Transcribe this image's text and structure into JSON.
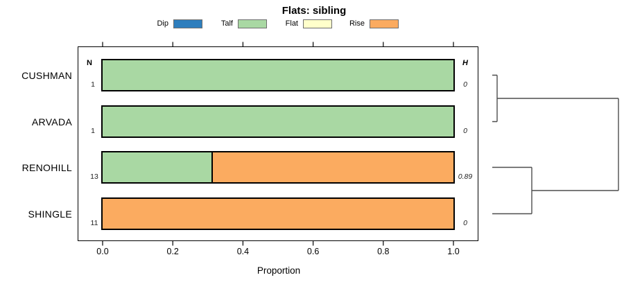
{
  "chart_data": {
    "type": "bar",
    "orientation": "horizontal-stacked",
    "title": "Flats: sibling",
    "xlabel": "Proportion",
    "xlim": [
      0,
      1
    ],
    "xticks": [
      "0.0",
      "0.2",
      "0.4",
      "0.6",
      "0.8",
      "1.0"
    ],
    "grid": false,
    "legend_position": "top",
    "columns": {
      "n_header": "N",
      "h_header": "H"
    },
    "legend": [
      {
        "label": "Dip",
        "color": "#2e7ebd"
      },
      {
        "label": "Talf",
        "color": "#a9d8a3"
      },
      {
        "label": "Flat",
        "color": "#ffffcb"
      },
      {
        "label": "Rise",
        "color": "#fbab60"
      }
    ],
    "rows": [
      {
        "label": "CUSHMAN",
        "n": "1",
        "h": "0",
        "segments": [
          {
            "category": "Talf",
            "value": 1.0
          }
        ]
      },
      {
        "label": "ARVADA",
        "n": "1",
        "h": "0",
        "segments": [
          {
            "category": "Talf",
            "value": 1.0
          }
        ]
      },
      {
        "label": "RENOHILL",
        "n": "13",
        "h": "0.89",
        "segments": [
          {
            "category": "Talf",
            "value": 0.31
          },
          {
            "category": "Rise",
            "value": 0.69
          }
        ]
      },
      {
        "label": "SHINGLE",
        "n": "11",
        "h": "0",
        "segments": [
          {
            "category": "Rise",
            "value": 1.0
          }
        ]
      }
    ],
    "dendrogram": {
      "clusters": [
        [
          "CUSHMAN",
          "ARVADA"
        ],
        [
          "RENOHILL",
          "SHINGLE"
        ]
      ],
      "root_joins": [
        "CUSHMAN+ARVADA",
        "RENOHILL+SHINGLE"
      ]
    }
  }
}
